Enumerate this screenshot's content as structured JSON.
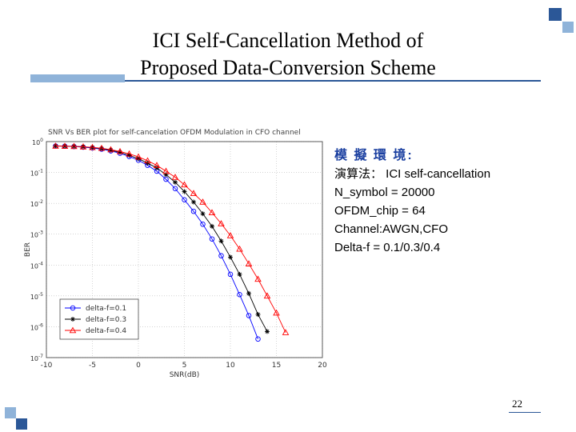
{
  "slide": {
    "title_line1": "ICI Self-Cancellation Method of",
    "title_line2": "Proposed Data-Conversion Scheme",
    "page_number": "22",
    "accent_color": "#2b5797",
    "accent_light": "#8fb3d9"
  },
  "info": {
    "heading": "模 擬 環 境:",
    "lines": [
      "演算法： ICI self-cancellation",
      "N_symbol = 20000",
      "OFDM_chip = 64",
      "Channel:AWGN,CFO",
      "Delta-f = 0.1/0.3/0.4"
    ]
  },
  "chart_data": {
    "type": "line",
    "title": "SNR Vs BER plot for self-cancelation OFDM Modulation in CFO channel",
    "xlabel": "SNR(dB)",
    "ylabel": "BER",
    "y_scale": "log",
    "xlim": [
      -10,
      20
    ],
    "ylim_exp": [
      -7,
      0
    ],
    "xticks": [
      "-10",
      "-5",
      "0",
      "5",
      "10",
      "15",
      "20"
    ],
    "grid": true,
    "legend_position": "bottom-left",
    "series": [
      {
        "name": "delta-f=0.1",
        "color": "#0000ff",
        "marker": "circle",
        "x": [
          -9,
          -8,
          -7,
          -6,
          -5,
          -4,
          -3,
          -2,
          -1,
          0,
          1,
          2,
          3,
          4,
          5,
          6,
          7,
          8,
          9,
          10,
          11,
          12,
          13
        ],
        "y": [
          0.72,
          0.71,
          0.69,
          0.66,
          0.62,
          0.57,
          0.5,
          0.42,
          0.33,
          0.25,
          0.17,
          0.11,
          0.06,
          0.03,
          0.013,
          0.0055,
          0.0021,
          0.0007,
          0.0002,
          5e-05,
          1.1e-05,
          2.3e-06,
          4e-07
        ]
      },
      {
        "name": "delta-f=0.3",
        "color": "#000000",
        "marker": "star",
        "x": [
          -9,
          -8,
          -7,
          -6,
          -5,
          -4,
          -3,
          -2,
          -1,
          0,
          1,
          2,
          3,
          4,
          5,
          6,
          7,
          8,
          9,
          10,
          11,
          12,
          13,
          14
        ],
        "y": [
          0.72,
          0.71,
          0.7,
          0.68,
          0.64,
          0.59,
          0.53,
          0.45,
          0.36,
          0.28,
          0.2,
          0.14,
          0.085,
          0.048,
          0.024,
          0.011,
          0.0046,
          0.0018,
          0.0006,
          0.00018,
          5e-05,
          1.2e-05,
          2.5e-06,
          7e-07
        ]
      },
      {
        "name": "delta-f=0.4",
        "color": "#ff0000",
        "marker": "triangle",
        "x": [
          -9,
          -8,
          -7,
          -6,
          -5,
          -4,
          -3,
          -2,
          -1,
          0,
          1,
          2,
          3,
          4,
          5,
          6,
          7,
          8,
          9,
          10,
          11,
          12,
          13,
          14,
          15,
          16
        ],
        "y": [
          0.72,
          0.71,
          0.7,
          0.68,
          0.65,
          0.61,
          0.55,
          0.48,
          0.4,
          0.32,
          0.24,
          0.17,
          0.11,
          0.07,
          0.04,
          0.021,
          0.011,
          0.005,
          0.0022,
          0.0009,
          0.00033,
          0.00011,
          3.5e-05,
          1e-05,
          2.8e-06,
          6.5e-07
        ]
      }
    ]
  }
}
